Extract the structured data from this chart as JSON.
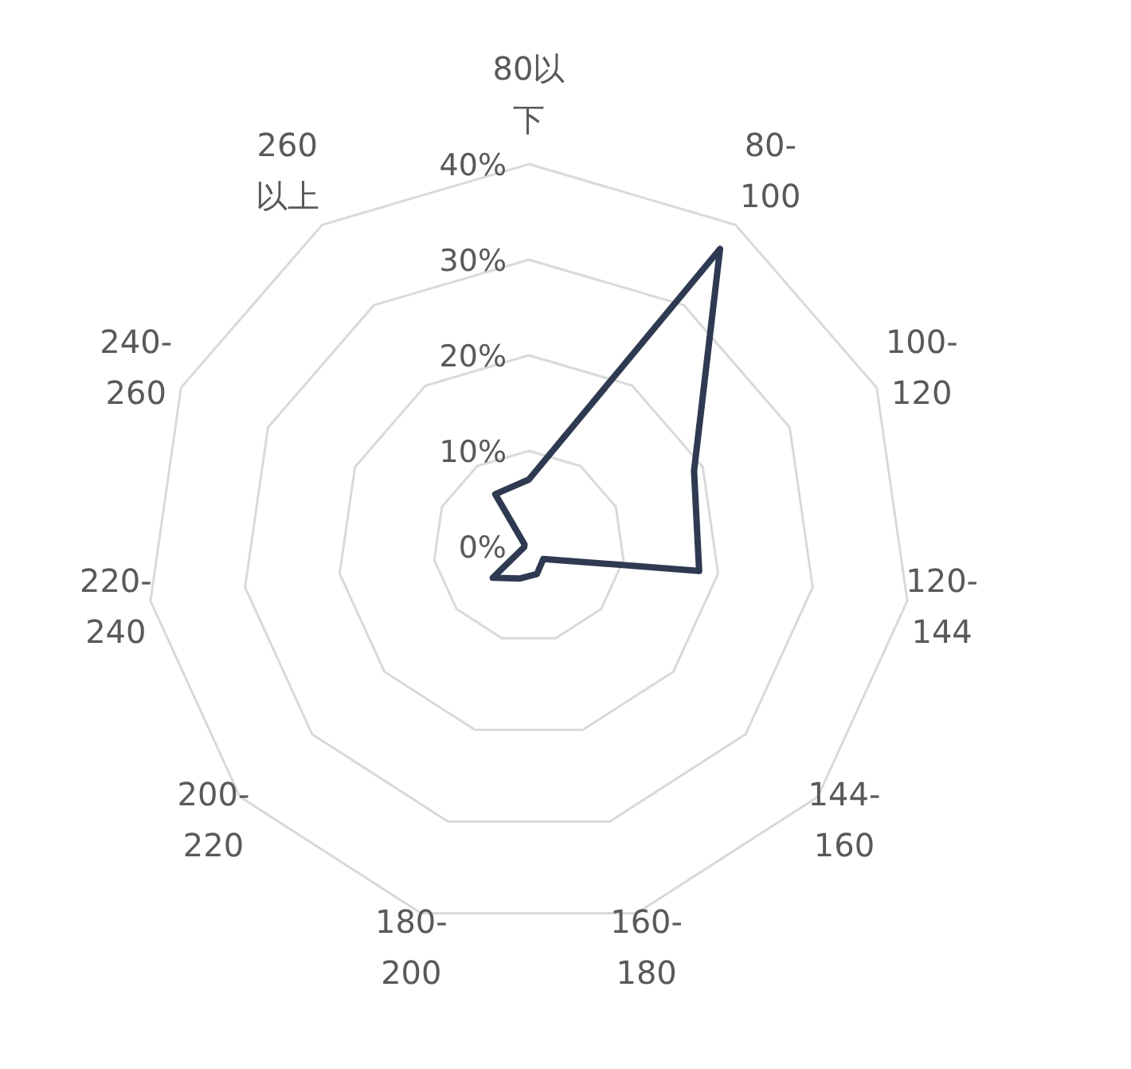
{
  "chart_data": {
    "type": "radar",
    "categories": [
      "80以下",
      "80-100",
      "100-120",
      "120-144",
      "144-160",
      "160-180",
      "180-200",
      "200-220",
      "220-240",
      "240-260",
      "260以上"
    ],
    "series": [
      {
        "color": "#2e3a52",
        "values": [
          7,
          37,
          19,
          18,
          2,
          3,
          3.5,
          5,
          0.5,
          0.5,
          6.5
        ]
      }
    ],
    "ylim": [
      0,
      40
    ],
    "yticks": [
      {
        "value": 0,
        "label": "0%"
      },
      {
        "value": 10,
        "label": "10%"
      },
      {
        "value": 20,
        "label": "20%"
      },
      {
        "value": 30,
        "label": "30%"
      },
      {
        "value": 40,
        "label": "40%"
      }
    ],
    "grid": true,
    "marker": "none",
    "line_style": "solid"
  }
}
